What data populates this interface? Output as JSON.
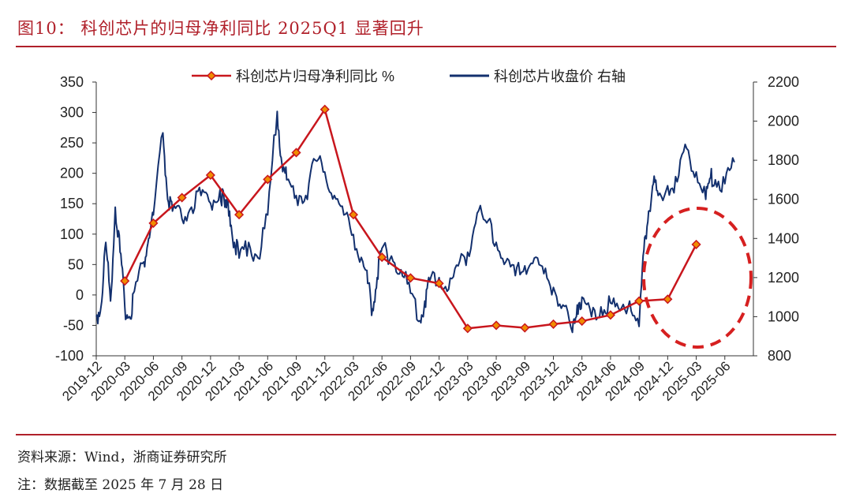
{
  "header": {
    "title": "图10：  科创芯片的归母净利同比 2025Q1 显著回升"
  },
  "footer": {
    "source": "资料来源：Wind，浙商证券研究所",
    "note": "注：数据截至 2025 年 7 月 28 日"
  },
  "colors": {
    "accent": "#b0202a",
    "profit_line": "#c8161d",
    "marker_fill": "#f08c00",
    "price_line": "#13306e",
    "highlight_ellipse": "#d62020"
  },
  "chart_data": {
    "type": "line",
    "x_ticks": [
      "2019-12",
      "2020-03",
      "2020-06",
      "2020-09",
      "2020-12",
      "2021-03",
      "2021-06",
      "2021-09",
      "2021-12",
      "2022-03",
      "2022-06",
      "2022-09",
      "2022-12",
      "2023-03",
      "2023-06",
      "2023-09",
      "2023-12",
      "2024-03",
      "2024-06",
      "2024-09",
      "2024-12",
      "2025-03",
      "2025-06"
    ],
    "y_left": {
      "min": -100,
      "max": 350,
      "ticks": [
        -100,
        -50,
        0,
        50,
        100,
        150,
        200,
        250,
        300,
        350
      ]
    },
    "y_right": {
      "min": 800,
      "max": 2200,
      "ticks": [
        800,
        1000,
        1200,
        1400,
        1600,
        1800,
        2000,
        2200
      ]
    },
    "legend_position": "top",
    "annotation": "red dashed ellipse around 2024-09 to 2025-03",
    "series": [
      {
        "name": "科创芯片归母净利同比 %",
        "axis": "left",
        "style": "line-with-diamond-markers",
        "points": [
          {
            "x": "2020-03",
            "y": 23
          },
          {
            "x": "2020-06",
            "y": 118
          },
          {
            "x": "2020-09",
            "y": 160
          },
          {
            "x": "2020-12",
            "y": 197
          },
          {
            "x": "2021-03",
            "y": 132
          },
          {
            "x": "2021-06",
            "y": 190
          },
          {
            "x": "2021-09",
            "y": 234
          },
          {
            "x": "2021-12",
            "y": 305
          },
          {
            "x": "2022-03",
            "y": 132
          },
          {
            "x": "2022-06",
            "y": 62
          },
          {
            "x": "2022-09",
            "y": 28
          },
          {
            "x": "2022-12",
            "y": 19
          },
          {
            "x": "2023-03",
            "y": -55
          },
          {
            "x": "2023-06",
            "y": -50
          },
          {
            "x": "2023-09",
            "y": -54
          },
          {
            "x": "2023-12",
            "y": -48
          },
          {
            "x": "2024-03",
            "y": -43
          },
          {
            "x": "2024-06",
            "y": -33
          },
          {
            "x": "2024-09",
            "y": -10
          },
          {
            "x": "2024-12",
            "y": -7
          },
          {
            "x": "2025-03",
            "y": 83
          }
        ]
      },
      {
        "name": "科创芯片收盘价 右轴",
        "axis": "right",
        "style": "line",
        "points": [
          {
            "x": "2019-12",
            "y": 1000
          },
          {
            "x": "2019-12",
            "y": 1050
          },
          {
            "x": "2020-01",
            "y": 1380
          },
          {
            "x": "2020-01",
            "y": 1080
          },
          {
            "x": "2020-02",
            "y": 1560
          },
          {
            "x": "2020-02",
            "y": 1330
          },
          {
            "x": "2020-03",
            "y": 1050
          },
          {
            "x": "2020-03",
            "y": 1000
          },
          {
            "x": "2020-04",
            "y": 1130
          },
          {
            "x": "2020-05",
            "y": 1280
          },
          {
            "x": "2020-05",
            "y": 1400
          },
          {
            "x": "2020-06",
            "y": 1520
          },
          {
            "x": "2020-07",
            "y": 1940
          },
          {
            "x": "2020-07",
            "y": 1600
          },
          {
            "x": "2020-08",
            "y": 1540
          },
          {
            "x": "2020-09",
            "y": 1500
          },
          {
            "x": "2020-10",
            "y": 1560
          },
          {
            "x": "2020-11",
            "y": 1620
          },
          {
            "x": "2020-12",
            "y": 1580
          },
          {
            "x": "2021-01",
            "y": 1650
          },
          {
            "x": "2021-01",
            "y": 1560
          },
          {
            "x": "2021-02",
            "y": 1540
          },
          {
            "x": "2021-02",
            "y": 1380
          },
          {
            "x": "2021-03",
            "y": 1300
          },
          {
            "x": "2021-04",
            "y": 1380
          },
          {
            "x": "2021-05",
            "y": 1300
          },
          {
            "x": "2021-06",
            "y": 1520
          },
          {
            "x": "2021-07",
            "y": 2050
          },
          {
            "x": "2021-07",
            "y": 1780
          },
          {
            "x": "2021-08",
            "y": 1700
          },
          {
            "x": "2021-09",
            "y": 1620
          },
          {
            "x": "2021-10",
            "y": 1620
          },
          {
            "x": "2021-11",
            "y": 1800
          },
          {
            "x": "2021-12",
            "y": 1740
          },
          {
            "x": "2022-01",
            "y": 1620
          },
          {
            "x": "2022-02",
            "y": 1520
          },
          {
            "x": "2022-03",
            "y": 1420
          },
          {
            "x": "2022-04",
            "y": 1280
          },
          {
            "x": "2022-04",
            "y": 1170
          },
          {
            "x": "2022-05",
            "y": 1040
          },
          {
            "x": "2022-05",
            "y": 1200
          },
          {
            "x": "2022-06",
            "y": 1350
          },
          {
            "x": "2022-07",
            "y": 1310
          },
          {
            "x": "2022-08",
            "y": 1240
          },
          {
            "x": "2022-09",
            "y": 1120
          },
          {
            "x": "2022-10",
            "y": 980
          },
          {
            "x": "2022-10",
            "y": 1080
          },
          {
            "x": "2022-11",
            "y": 1180
          },
          {
            "x": "2022-12",
            "y": 1200
          },
          {
            "x": "2023-01",
            "y": 1140
          },
          {
            "x": "2023-02",
            "y": 1260
          },
          {
            "x": "2023-03",
            "y": 1330
          },
          {
            "x": "2023-04",
            "y": 1530
          },
          {
            "x": "2023-05",
            "y": 1480
          },
          {
            "x": "2023-06",
            "y": 1380
          },
          {
            "x": "2023-07",
            "y": 1280
          },
          {
            "x": "2023-08",
            "y": 1210
          },
          {
            "x": "2023-09",
            "y": 1260
          },
          {
            "x": "2023-10",
            "y": 1300
          },
          {
            "x": "2023-11",
            "y": 1220
          },
          {
            "x": "2023-12",
            "y": 1150
          },
          {
            "x": "2024-01",
            "y": 1060
          },
          {
            "x": "2024-02",
            "y": 920
          },
          {
            "x": "2024-02",
            "y": 1060
          },
          {
            "x": "2024-03",
            "y": 1100
          },
          {
            "x": "2024-04",
            "y": 1000
          },
          {
            "x": "2024-05",
            "y": 1050
          },
          {
            "x": "2024-06",
            "y": 1070
          },
          {
            "x": "2024-07",
            "y": 1030
          },
          {
            "x": "2024-08",
            "y": 1080
          },
          {
            "x": "2024-09",
            "y": 950
          },
          {
            "x": "2024-09",
            "y": 1340
          },
          {
            "x": "2024-10",
            "y": 1540
          },
          {
            "x": "2024-10",
            "y": 1680
          },
          {
            "x": "2024-11",
            "y": 1620
          },
          {
            "x": "2024-12",
            "y": 1670
          },
          {
            "x": "2025-01",
            "y": 1690
          },
          {
            "x": "2025-02",
            "y": 1860
          },
          {
            "x": "2025-03",
            "y": 1740
          },
          {
            "x": "2025-04",
            "y": 1600
          },
          {
            "x": "2025-04",
            "y": 1710
          },
          {
            "x": "2025-05",
            "y": 1700
          },
          {
            "x": "2025-06",
            "y": 1680
          },
          {
            "x": "2025-07",
            "y": 1790
          }
        ]
      }
    ]
  }
}
